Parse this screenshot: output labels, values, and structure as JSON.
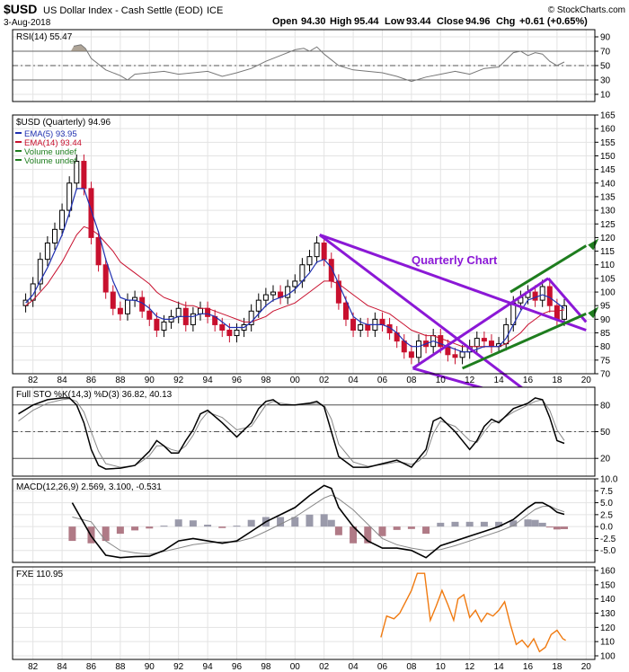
{
  "header": {
    "symbol": "$USD",
    "name": "US Dollar Index - Cash Settle (EOD)",
    "exchange": "ICE",
    "date": "3-Aug-2018",
    "open_label": "Open",
    "open": "94.30",
    "high_label": "High",
    "high": "95.44",
    "low_label": "Low",
    "low": "93.44",
    "close_label": "Close",
    "close": "94.96",
    "chg_label": "Chg",
    "chg": "+0.61 (+0.65%)",
    "watermark": "© StockCharts.com"
  },
  "colors": {
    "up": "#000000",
    "down": "#c8102e",
    "ema5": "#1f2fb0",
    "ema14": "#c8102e",
    "trendline": "#8b18d6",
    "trendline_green": "#1e7d1e",
    "fxe": "#f07a10",
    "hist": "#9a9aaa",
    "hist_neg": "#b07a86",
    "annotation": "#8b18d6"
  },
  "chart_data": [
    {
      "type": "line",
      "panel": "rsi",
      "legend": "RSI(14) 55.47",
      "yticks": [
        10,
        30,
        50,
        70,
        90
      ],
      "ylim": [
        0,
        100
      ],
      "reference_lines": [
        30,
        50,
        70
      ],
      "series": [
        {
          "name": "RSI(14)",
          "x": [
            1984.8,
            1985.3,
            1985.6,
            1986,
            1987,
            1988,
            1988.5,
            1989,
            1990,
            1991,
            1992,
            1993,
            1994,
            1995,
            1996,
            1997,
            1998,
            1999,
            2000,
            2000.6,
            2001,
            2001.5,
            2002,
            2003,
            2004,
            2005,
            2006,
            2007,
            2008,
            2009,
            2010,
            2011,
            2012,
            2013,
            2014,
            2015,
            2015.5,
            2016,
            2016.5,
            2017,
            2017.5,
            2018,
            2018.5
          ],
          "values": [
            77,
            79,
            74,
            60,
            44,
            36,
            30,
            38,
            40,
            42,
            38,
            40,
            42,
            35,
            40,
            46,
            56,
            64,
            72,
            74,
            70,
            76,
            66,
            50,
            44,
            42,
            40,
            35,
            28,
            34,
            38,
            42,
            38,
            46,
            48,
            68,
            70,
            64,
            68,
            66,
            56,
            50,
            55
          ]
        }
      ]
    },
    {
      "type": "candlestick",
      "panel": "price",
      "title": "$USD (Quarterly) 94.96",
      "legend": [
        "EMA(5) 93.95",
        "EMA(14) 93.44",
        "Volume undef",
        "Volume undef"
      ],
      "annotation": "Quarterly Chart",
      "ylim": [
        70,
        165
      ],
      "yticks": [
        70,
        75,
        80,
        85,
        90,
        95,
        100,
        105,
        110,
        115,
        120,
        125,
        130,
        135,
        140,
        145,
        150,
        155,
        160,
        165
      ],
      "xticks": [
        "82",
        "84",
        "86",
        "88",
        "90",
        "92",
        "94",
        "96",
        "98",
        "00",
        "02",
        "04",
        "06",
        "08",
        "10",
        "12",
        "14",
        "16",
        "18",
        "20"
      ],
      "x": [
        1981.5,
        1982,
        1982.5,
        1983,
        1983.5,
        1984,
        1984.5,
        1985,
        1985.5,
        1986,
        1986.5,
        1987,
        1987.5,
        1988,
        1988.5,
        1989,
        1989.5,
        1990,
        1990.5,
        1991,
        1991.5,
        1992,
        1992.5,
        1993,
        1993.5,
        1994,
        1994.5,
        1995,
        1995.5,
        1996,
        1996.5,
        1997,
        1997.5,
        1998,
        1998.5,
        1999,
        1999.5,
        2000,
        2000.5,
        2001,
        2001.5,
        2002,
        2002.5,
        2003,
        2003.5,
        2004,
        2004.5,
        2005,
        2005.5,
        2006,
        2006.5,
        2007,
        2007.5,
        2008,
        2008.5,
        2009,
        2009.5,
        2010,
        2010.5,
        2011,
        2011.5,
        2012,
        2012.5,
        2013,
        2013.5,
        2014,
        2014.5,
        2015,
        2015.5,
        2016,
        2016.5,
        2017,
        2017.5,
        2018,
        2018.5
      ],
      "close": [
        97,
        103,
        112,
        118,
        123,
        130,
        140,
        148,
        138,
        120,
        110,
        100,
        94,
        92,
        97,
        98,
        93,
        90,
        86,
        89,
        91,
        94,
        88,
        92,
        94,
        91,
        88,
        86,
        84,
        86,
        88,
        93,
        97,
        99,
        100,
        98,
        102,
        104,
        110,
        113,
        118,
        112,
        104,
        96,
        90,
        86,
        88,
        86,
        90,
        88,
        85,
        82,
        78,
        76,
        82,
        80,
        84,
        80,
        77,
        76,
        78,
        80,
        83,
        82,
        80,
        81,
        88,
        96,
        98,
        100,
        97,
        102,
        95,
        90,
        94.96
      ],
      "ema5": [
        96,
        99,
        104,
        109,
        115,
        121,
        129,
        138,
        138,
        130,
        122,
        112,
        104,
        98,
        97,
        97,
        96,
        94,
        91,
        90,
        90,
        91,
        91,
        91,
        92,
        92,
        91,
        89,
        87,
        87,
        87,
        89,
        92,
        95,
        97,
        98,
        99,
        101,
        104,
        107,
        111,
        112,
        109,
        103,
        97,
        91,
        89,
        88,
        88,
        88,
        87,
        85,
        82,
        80,
        80,
        81,
        82,
        81,
        80,
        79,
        78,
        78,
        79,
        80,
        80,
        80,
        83,
        88,
        93,
        97,
        98,
        99,
        98,
        96,
        93.95
      ],
      "ema14": [
        95,
        97,
        100,
        103,
        107,
        111,
        116,
        121,
        124,
        123,
        121,
        118,
        115,
        111,
        109,
        107,
        105,
        103,
        100,
        98,
        97,
        96,
        95,
        95,
        94,
        94,
        93,
        92,
        91,
        90,
        89,
        89,
        90,
        91,
        93,
        94,
        95,
        96,
        98,
        100,
        102,
        104,
        104,
        103,
        101,
        99,
        97,
        95,
        94,
        93,
        92,
        90,
        88,
        86,
        85,
        84,
        84,
        83,
        82,
        81,
        80,
        80,
        80,
        80,
        80,
        80,
        81,
        83,
        85,
        88,
        90,
        92,
        93,
        93,
        93.44
      ],
      "trendlines": [
        {
          "color": "purple",
          "from": [
            2001.7,
            121
          ],
          "to": [
            2020,
            86
          ]
        },
        {
          "color": "purple",
          "from": [
            2001.7,
            121
          ],
          "to": [
            2020,
            47
          ]
        },
        {
          "color": "purple",
          "from": [
            2008.1,
            72
          ],
          "to": [
            2020,
            54
          ]
        },
        {
          "color": "purple",
          "from": [
            2008.1,
            72
          ],
          "to": [
            2017.4,
            105
          ]
        },
        {
          "color": "purple",
          "from": [
            2017.4,
            105
          ],
          "to": [
            2020,
            89
          ]
        },
        {
          "color": "green",
          "from": [
            2011.5,
            72
          ],
          "to": [
            2020,
            92
          ]
        },
        {
          "color": "green",
          "from": [
            2014.8,
            100
          ],
          "to": [
            2020,
            117
          ]
        }
      ]
    },
    {
      "type": "line",
      "panel": "sto",
      "legend": "Full STO %K(14,3) %D(3) 36.82, 40.13",
      "ylim": [
        0,
        100
      ],
      "yticks": [
        20,
        50,
        80
      ],
      "reference_lines": [
        20,
        50,
        80
      ],
      "x": [
        1981,
        1982,
        1983,
        1984,
        1984.5,
        1985,
        1985.5,
        1986,
        1986.5,
        1987,
        1988,
        1989,
        1989.5,
        1990,
        1990.5,
        1991,
        1991.5,
        1992,
        1992.5,
        1993,
        1993.5,
        1994,
        1995,
        1996,
        1997,
        1997.5,
        1998,
        1998.5,
        1999,
        2000,
        2001,
        2001.5,
        2002,
        2002.5,
        2003,
        2004,
        2005,
        2006,
        2007,
        2007.5,
        2008,
        2008.5,
        2009,
        2009.5,
        2010,
        2011,
        2012,
        2012.5,
        2013,
        2013.5,
        2014,
        2015,
        2016,
        2016.5,
        2017,
        2017.5,
        2018,
        2018.5
      ],
      "series": [
        {
          "name": "%K",
          "values": [
            70,
            80,
            86,
            88,
            88,
            80,
            60,
            30,
            12,
            8,
            9,
            12,
            20,
            28,
            40,
            34,
            26,
            26,
            40,
            52,
            70,
            74,
            60,
            44,
            60,
            76,
            84,
            86,
            80,
            80,
            82,
            84,
            78,
            50,
            22,
            10,
            10,
            14,
            18,
            14,
            10,
            20,
            30,
            62,
            66,
            50,
            30,
            40,
            56,
            64,
            60,
            76,
            82,
            88,
            86,
            66,
            40,
            36.82
          ]
        },
        {
          "name": "%D",
          "values": [
            62,
            74,
            82,
            86,
            87,
            84,
            72,
            50,
            28,
            14,
            10,
            12,
            17,
            23,
            34,
            34,
            30,
            28,
            34,
            46,
            62,
            72,
            66,
            52,
            56,
            68,
            80,
            84,
            82,
            80,
            81,
            82,
            80,
            64,
            36,
            16,
            11,
            13,
            16,
            15,
            13,
            17,
            24,
            48,
            62,
            56,
            40,
            38,
            50,
            60,
            62,
            72,
            80,
            84,
            86,
            74,
            52,
            40.13
          ]
        }
      ]
    },
    {
      "type": "line",
      "panel": "macd",
      "legend": "MACD(12,26,9) 2.569, 3.100, -0.531",
      "ylim": [
        -7.5,
        10
      ],
      "yticks": [
        -5.0,
        -2.5,
        0.0,
        2.5,
        5.0,
        7.5,
        10.0
      ],
      "x": [
        1984.7,
        1986,
        1987,
        1988,
        1989,
        1990,
        1991,
        1992,
        1993,
        1994,
        1995,
        1996,
        1997,
        1998,
        1999,
        2000,
        2001,
        2002,
        2002.5,
        2003,
        2004,
        2005,
        2006,
        2007,
        2008,
        2009,
        2010,
        2011,
        2012,
        2013,
        2014,
        2015,
        2016,
        2016.5,
        2017,
        2017.5,
        2018,
        2018.5
      ],
      "series": [
        {
          "name": "MACD",
          "values": [
            5,
            -2,
            -6,
            -6.5,
            -6.3,
            -6.2,
            -5,
            -3,
            -2.5,
            -3,
            -3.5,
            -3,
            -1,
            1,
            2.5,
            4,
            6.5,
            8.6,
            8,
            4,
            0,
            -3,
            -4.5,
            -4.5,
            -5,
            -6.5,
            -4,
            -3,
            -2,
            -1,
            0,
            1.5,
            4,
            5,
            5,
            4.2,
            3,
            2.569
          ]
        },
        {
          "name": "Signal",
          "values": [
            2,
            1,
            -3,
            -5,
            -5.5,
            -5.8,
            -5.2,
            -4.5,
            -3.8,
            -3.4,
            -3.2,
            -3.2,
            -2.4,
            -1,
            0.5,
            2,
            4,
            6,
            6.6,
            5.8,
            3.5,
            0.5,
            -2.5,
            -3.8,
            -4.5,
            -5,
            -4.8,
            -4,
            -3,
            -2,
            -1,
            0.2,
            2.5,
            3.6,
            4.2,
            4.3,
            3.6,
            3.1
          ]
        },
        {
          "name": "Histogram",
          "values": [
            -3,
            -3.5,
            -3,
            -1.5,
            -0.8,
            -0.4,
            0.2,
            1.5,
            1.3,
            0.4,
            -0.3,
            0.2,
            1.4,
            2,
            2,
            2,
            2.5,
            2.6,
            1.4,
            -1.8,
            -3.5,
            -3.5,
            -2,
            -0.7,
            -0.5,
            -1.5,
            0.8,
            1,
            1,
            1,
            1,
            1.3,
            1.5,
            1.4,
            0.8,
            -0.1,
            -0.6,
            -0.531
          ]
        }
      ]
    },
    {
      "type": "line",
      "panel": "fxe",
      "legend": "FXE 110.95",
      "ylim": [
        100,
        160
      ],
      "yticks": [
        100,
        110,
        120,
        130,
        140,
        150,
        160
      ],
      "series": [
        {
          "name": "FXE",
          "x": [
            2005.9,
            2006.3,
            2006.8,
            2007.2,
            2007.6,
            2008.0,
            2008.4,
            2008.9,
            2009.3,
            2009.7,
            2010.1,
            2010.5,
            2010.9,
            2011.2,
            2011.6,
            2012.0,
            2012.4,
            2012.8,
            2013.2,
            2013.6,
            2014.0,
            2014.4,
            2014.8,
            2015.2,
            2015.6,
            2016.0,
            2016.4,
            2016.8,
            2017.2,
            2017.6,
            2018.0,
            2018.4,
            2018.6
          ],
          "values": [
            113,
            128,
            126,
            130,
            138,
            146,
            158,
            158,
            125,
            135,
            146,
            136,
            125,
            140,
            143,
            127,
            132,
            124,
            130,
            128,
            132,
            138,
            122,
            108,
            111,
            106,
            112,
            103,
            106,
            115,
            118,
            112,
            110.95
          ]
        }
      ]
    },
    {
      "type": "axis",
      "panel": "bottom-axis",
      "xticks": [
        "82",
        "84",
        "86",
        "88",
        "90",
        "92",
        "94",
        "96",
        "98",
        "00",
        "02",
        "04",
        "06",
        "08",
        "10",
        "12",
        "14",
        "16",
        "18",
        "20"
      ]
    }
  ]
}
